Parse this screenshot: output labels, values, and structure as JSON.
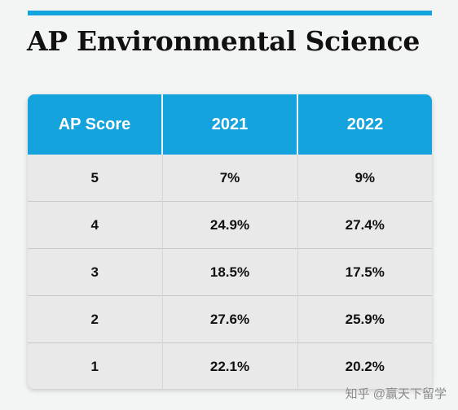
{
  "page": {
    "title": "AP Environmental Science",
    "accent_color": "#14a3dc"
  },
  "table": {
    "headers": [
      "AP Score",
      "2021",
      "2022"
    ],
    "rows": [
      [
        "5",
        "7%",
        "9%"
      ],
      [
        "4",
        "24.9%",
        "27.4%"
      ],
      [
        "3",
        "18.5%",
        "17.5%"
      ],
      [
        "2",
        "27.6%",
        "25.9%"
      ],
      [
        "1",
        "22.1%",
        "20.2%"
      ]
    ]
  },
  "watermark": {
    "text": "知乎 @赢天下留学"
  }
}
